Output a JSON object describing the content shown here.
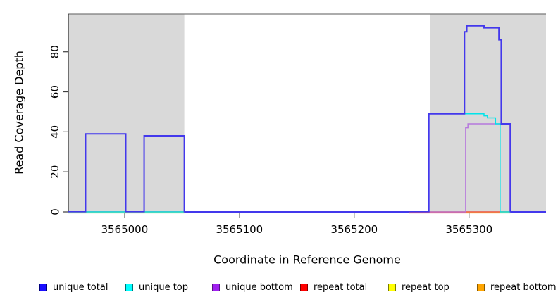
{
  "chart_data": {
    "type": "line",
    "step": true,
    "title": "",
    "xlabel": "Coordinate in Reference Genome",
    "ylabel": "Read Coverage Depth",
    "xlim": [
      3564951,
      3565367
    ],
    "ylim": [
      0,
      98.9
    ],
    "x_ticks": [
      "3565000",
      "3565100",
      "3565200",
      "3565300"
    ],
    "x_tick_values": [
      3565000,
      3565100,
      3565200,
      3565300
    ],
    "y_ticks": [
      "0",
      "20",
      "40",
      "60",
      "80"
    ],
    "y_tick_values": [
      0,
      20,
      40,
      60,
      80
    ],
    "grid": false,
    "legend_position": "bottom",
    "shaded_regions": [
      {
        "x0": 3564951,
        "x1": 3565052,
        "color": "#d9d9d9"
      },
      {
        "x0": 3565266,
        "x1": 3565367,
        "color": "#d9d9d9"
      }
    ],
    "series": [
      {
        "name": "unique total",
        "color": "#4338ec",
        "line_width": 2,
        "points": [
          [
            3564951,
            0
          ],
          [
            3564966,
            39
          ],
          [
            3565001,
            0
          ],
          [
            3565017,
            38
          ],
          [
            3565052,
            0
          ],
          [
            3565265,
            49
          ],
          [
            3565296,
            90
          ],
          [
            3565298,
            93
          ],
          [
            3565313,
            92
          ],
          [
            3565326,
            86
          ],
          [
            3565328,
            44
          ],
          [
            3565336,
            0
          ],
          [
            3565367,
            0
          ]
        ]
      },
      {
        "name": "unique top",
        "color": "#00e4ea",
        "line_width": 1.5,
        "points": [
          [
            3564951,
            0
          ],
          [
            3565265,
            49
          ],
          [
            3565313,
            48
          ],
          [
            3565316,
            47
          ],
          [
            3565323,
            44
          ],
          [
            3565327,
            0
          ],
          [
            3565367,
            0
          ]
        ]
      },
      {
        "name": "unique bottom",
        "color": "#b678dd",
        "line_width": 1.5,
        "points": [
          [
            3564951,
            0
          ],
          [
            3565297,
            42
          ],
          [
            3565299,
            44
          ],
          [
            3565335,
            0
          ],
          [
            3565367,
            0
          ]
        ]
      },
      {
        "name": "repeat total",
        "color": "#e65570",
        "line_width": 1.5,
        "points": [
          [
            3564951,
            0
          ],
          [
            3565367,
            0
          ]
        ]
      },
      {
        "name": "repeat top",
        "color": "#f2e822",
        "line_width": 1.5,
        "points": [
          [
            3564951,
            0
          ],
          [
            3565367,
            0
          ]
        ]
      },
      {
        "name": "repeat bottom",
        "color": "#ff9d00",
        "line_width": 1.5,
        "points": [
          [
            3564951,
            0
          ],
          [
            3565367,
            0
          ]
        ]
      }
    ],
    "baseline_overlap_segments": [
      {
        "x0": 3564951,
        "x1": 3565052,
        "color": "#8cd98c"
      },
      {
        "x0": 3565248,
        "x1": 3565297,
        "color": "#e65570"
      },
      {
        "x0": 3565297,
        "x1": 3565327,
        "color": "#ff9d00"
      },
      {
        "x0": 3565327,
        "x1": 3565336,
        "color": "#8cd98c"
      }
    ],
    "legend": [
      {
        "label": "unique total",
        "fill": "#1a0dff",
        "border": "#00007e"
      },
      {
        "label": "unique top",
        "fill": "#00ffff",
        "border": "#006f74"
      },
      {
        "label": "unique bottom",
        "fill": "#a020f0",
        "border": "#571283"
      },
      {
        "label": "repeat total",
        "fill": "#ff0000",
        "border": "#7e0000"
      },
      {
        "label": "repeat top",
        "fill": "#ffff00",
        "border": "#7a7a00"
      },
      {
        "label": "repeat bottom",
        "fill": "#ffa500",
        "border": "#8a5b00"
      }
    ]
  }
}
